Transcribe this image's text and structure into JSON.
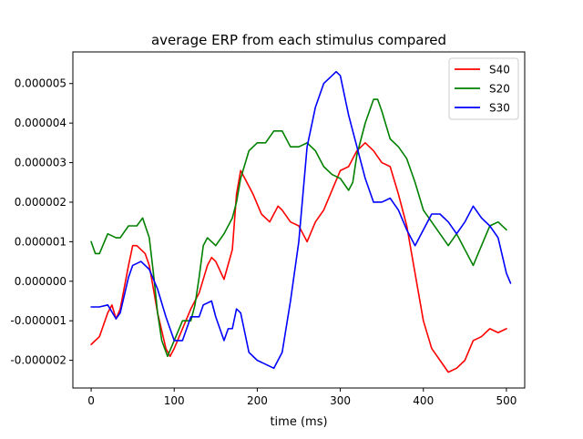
{
  "chart_data": {
    "type": "line",
    "title": "average ERP from each stimulus compared",
    "xlabel": "time (ms)",
    "ylabel": "",
    "xlim": [
      -22,
      522
    ],
    "ylim": [
      -2.7e-06,
      5.8e-06
    ],
    "x_ticks": [
      0,
      100,
      200,
      300,
      400,
      500
    ],
    "x_tick_labels": [
      "0",
      "100",
      "200",
      "300",
      "400",
      "500"
    ],
    "y_ticks": [
      -2e-06,
      -1e-06,
      0,
      1e-06,
      2e-06,
      3e-06,
      4e-06,
      5e-06
    ],
    "y_tick_labels": [
      "-0.000002",
      "-0.000001",
      "0.000000",
      "0.000001",
      "0.000002",
      "0.000003",
      "0.000004",
      "0.000005"
    ],
    "grid": false,
    "legend_position": "top-right",
    "series": [
      {
        "name": "S40",
        "color": "#ff0000",
        "points": [
          [
            0,
            -1.6e-06
          ],
          [
            10,
            -1.4e-06
          ],
          [
            20,
            -8e-07
          ],
          [
            25,
            -6e-07
          ],
          [
            30,
            -9.5e-07
          ],
          [
            35,
            -7e-07
          ],
          [
            45,
            4e-07
          ],
          [
            50,
            9e-07
          ],
          [
            55,
            9e-07
          ],
          [
            60,
            8e-07
          ],
          [
            65,
            7e-07
          ],
          [
            70,
            4e-07
          ],
          [
            80,
            -8e-07
          ],
          [
            90,
            -1.7e-06
          ],
          [
            95,
            -1.9e-06
          ],
          [
            100,
            -1.7e-06
          ],
          [
            110,
            -1.2e-06
          ],
          [
            120,
            -7e-07
          ],
          [
            130,
            -3e-07
          ],
          [
            140,
            4e-07
          ],
          [
            145,
            6e-07
          ],
          [
            150,
            5e-07
          ],
          [
            160,
            5e-08
          ],
          [
            170,
            8e-07
          ],
          [
            175,
            2.2e-06
          ],
          [
            180,
            2.8e-06
          ],
          [
            185,
            2.6e-06
          ],
          [
            195,
            2.2e-06
          ],
          [
            205,
            1.7e-06
          ],
          [
            215,
            1.5e-06
          ],
          [
            225,
            1.9e-06
          ],
          [
            230,
            1.8e-06
          ],
          [
            240,
            1.5e-06
          ],
          [
            250,
            1.4e-06
          ],
          [
            260,
            1e-06
          ],
          [
            270,
            1.5e-06
          ],
          [
            280,
            1.8e-06
          ],
          [
            290,
            2.3e-06
          ],
          [
            300,
            2.8e-06
          ],
          [
            310,
            2.9e-06
          ],
          [
            320,
            3.3e-06
          ],
          [
            330,
            3.5e-06
          ],
          [
            340,
            3.3e-06
          ],
          [
            350,
            3e-06
          ],
          [
            360,
            2.9e-06
          ],
          [
            370,
            2.2e-06
          ],
          [
            380,
            1.4e-06
          ],
          [
            390,
            2e-07
          ],
          [
            400,
            -1e-06
          ],
          [
            410,
            -1.7e-06
          ],
          [
            420,
            -2e-06
          ],
          [
            430,
            -2.3e-06
          ],
          [
            440,
            -2.2e-06
          ],
          [
            450,
            -2e-06
          ],
          [
            460,
            -1.5e-06
          ],
          [
            470,
            -1.4e-06
          ],
          [
            480,
            -1.2e-06
          ],
          [
            490,
            -1.3e-06
          ],
          [
            500,
            -1.2e-06
          ]
        ]
      },
      {
        "name": "S20",
        "color": "#008000",
        "points": [
          [
            0,
            1e-06
          ],
          [
            5,
            7e-07
          ],
          [
            10,
            7e-07
          ],
          [
            20,
            1.2e-06
          ],
          [
            30,
            1.1e-06
          ],
          [
            35,
            1.1e-06
          ],
          [
            45,
            1.4e-06
          ],
          [
            55,
            1.4e-06
          ],
          [
            62,
            1.6e-06
          ],
          [
            70,
            1.1e-06
          ],
          [
            75,
            2e-07
          ],
          [
            80,
            -8e-07
          ],
          [
            85,
            -1.5e-06
          ],
          [
            92,
            -1.9e-06
          ],
          [
            100,
            -1.5e-06
          ],
          [
            110,
            -1e-06
          ],
          [
            120,
            -1e-06
          ],
          [
            125,
            -6e-07
          ],
          [
            130,
            1e-07
          ],
          [
            135,
            9e-07
          ],
          [
            140,
            1.1e-06
          ],
          [
            150,
            9e-07
          ],
          [
            160,
            1.2e-06
          ],
          [
            170,
            1.6e-06
          ],
          [
            175,
            2e-06
          ],
          [
            180,
            2.6e-06
          ],
          [
            190,
            3.3e-06
          ],
          [
            200,
            3.5e-06
          ],
          [
            210,
            3.5e-06
          ],
          [
            220,
            3.8e-06
          ],
          [
            230,
            3.8e-06
          ],
          [
            240,
            3.4e-06
          ],
          [
            250,
            3.4e-06
          ],
          [
            260,
            3.5e-06
          ],
          [
            270,
            3.3e-06
          ],
          [
            280,
            2.9e-06
          ],
          [
            290,
            2.7e-06
          ],
          [
            300,
            2.6e-06
          ],
          [
            310,
            2.3e-06
          ],
          [
            315,
            2.5e-06
          ],
          [
            320,
            3.2e-06
          ],
          [
            330,
            4e-06
          ],
          [
            340,
            4.6e-06
          ],
          [
            345,
            4.6e-06
          ],
          [
            350,
            4.3e-06
          ],
          [
            360,
            3.6e-06
          ],
          [
            370,
            3.4e-06
          ],
          [
            380,
            3.1e-06
          ],
          [
            390,
            2.5e-06
          ],
          [
            400,
            1.8e-06
          ],
          [
            410,
            1.5e-06
          ],
          [
            420,
            1.2e-06
          ],
          [
            430,
            9e-07
          ],
          [
            440,
            1.2e-06
          ],
          [
            450,
            8e-07
          ],
          [
            460,
            4e-07
          ],
          [
            470,
            9e-07
          ],
          [
            480,
            1.4e-06
          ],
          [
            490,
            1.5e-06
          ],
          [
            500,
            1.3e-06
          ]
        ]
      },
      {
        "name": "S30",
        "color": "#0000ff",
        "points": [
          [
            0,
            -6.5e-07
          ],
          [
            10,
            -6.5e-07
          ],
          [
            20,
            -6e-07
          ],
          [
            30,
            -9.5e-07
          ],
          [
            35,
            -8e-07
          ],
          [
            45,
            1e-07
          ],
          [
            50,
            4e-07
          ],
          [
            60,
            5e-07
          ],
          [
            70,
            3e-07
          ],
          [
            80,
            -2e-07
          ],
          [
            90,
            -9e-07
          ],
          [
            100,
            -1.5e-06
          ],
          [
            110,
            -1.5e-06
          ],
          [
            120,
            -9e-07
          ],
          [
            130,
            -9e-07
          ],
          [
            135,
            -6e-07
          ],
          [
            145,
            -5e-07
          ],
          [
            150,
            -9e-07
          ],
          [
            160,
            -1.5e-06
          ],
          [
            165,
            -1.2e-06
          ],
          [
            170,
            -1.2e-06
          ],
          [
            175,
            -7e-07
          ],
          [
            180,
            -8e-07
          ],
          [
            190,
            -1.8e-06
          ],
          [
            200,
            -2e-06
          ],
          [
            210,
            -2.1e-06
          ],
          [
            220,
            -2.2e-06
          ],
          [
            230,
            -1.8e-06
          ],
          [
            240,
            -5e-07
          ],
          [
            250,
            1e-06
          ],
          [
            260,
            3.4e-06
          ],
          [
            270,
            4.4e-06
          ],
          [
            280,
            5e-06
          ],
          [
            290,
            5.2e-06
          ],
          [
            295,
            5.3e-06
          ],
          [
            300,
            5.2e-06
          ],
          [
            310,
            4.2e-06
          ],
          [
            320,
            3.4e-06
          ],
          [
            330,
            2.6e-06
          ],
          [
            340,
            2e-06
          ],
          [
            350,
            2e-06
          ],
          [
            360,
            2.1e-06
          ],
          [
            370,
            1.8e-06
          ],
          [
            380,
            1.3e-06
          ],
          [
            390,
            9e-07
          ],
          [
            400,
            1.3e-06
          ],
          [
            410,
            1.7e-06
          ],
          [
            420,
            1.7e-06
          ],
          [
            430,
            1.5e-06
          ],
          [
            440,
            1.2e-06
          ],
          [
            450,
            1.5e-06
          ],
          [
            460,
            1.9e-06
          ],
          [
            470,
            1.6e-06
          ],
          [
            480,
            1.4e-06
          ],
          [
            490,
            1.1e-06
          ],
          [
            500,
            2e-07
          ],
          [
            505,
            -5e-08
          ]
        ]
      }
    ]
  }
}
